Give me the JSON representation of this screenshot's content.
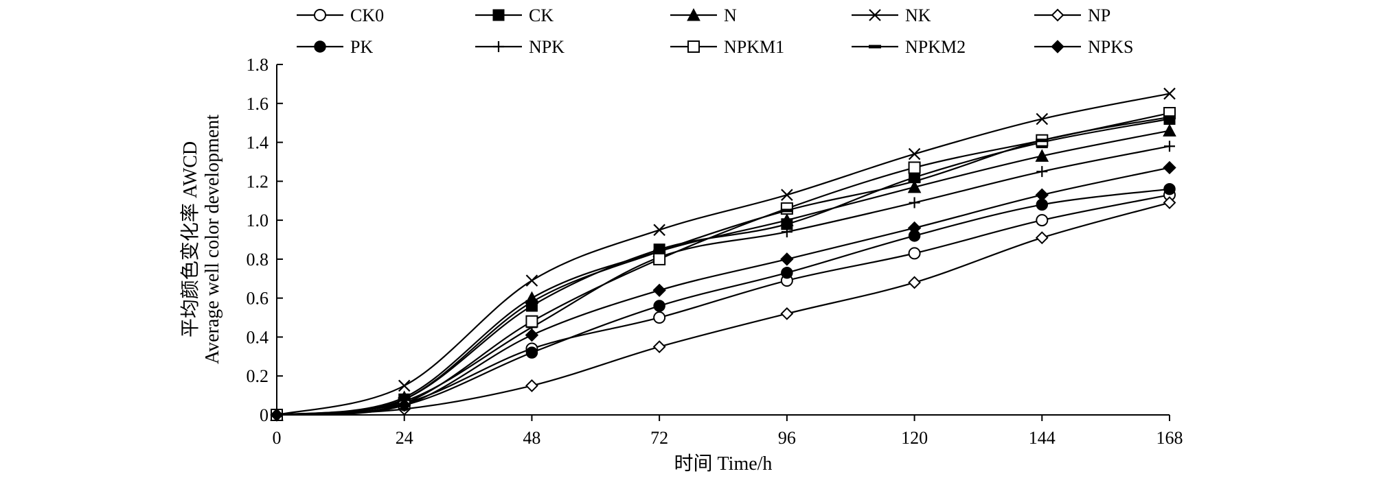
{
  "chart_data": {
    "type": "line",
    "x": [
      0,
      24,
      48,
      72,
      96,
      120,
      144,
      168
    ],
    "xlim": [
      0,
      168
    ],
    "ylim": [
      0,
      1.8
    ],
    "x_ticks": [
      "0",
      "24",
      "48",
      "72",
      "96",
      "120",
      "144",
      "168"
    ],
    "y_ticks": [
      "0",
      "0.2",
      "0.4",
      "0.6",
      "0.8",
      "1.0",
      "1.2",
      "1.4",
      "1.6",
      "1.8"
    ],
    "xlabel": "时间 Time/h",
    "ylabel_cn": "平均颜色变化率 AWCD",
    "ylabel_en": "Average well color development",
    "grid": false,
    "legend_position": "top",
    "series": [
      {
        "name": "CK0",
        "marker": "circle-open",
        "values": [
          0,
          0.06,
          0.34,
          0.5,
          0.69,
          0.83,
          1.0,
          1.13
        ]
      },
      {
        "name": "CK",
        "marker": "square-filled",
        "values": [
          0,
          0.08,
          0.56,
          0.85,
          0.98,
          1.22,
          1.4,
          1.52
        ]
      },
      {
        "name": "N",
        "marker": "triangle-filled",
        "values": [
          0,
          0.09,
          0.6,
          0.84,
          1.0,
          1.17,
          1.33,
          1.46
        ]
      },
      {
        "name": "NK",
        "marker": "x",
        "values": [
          0,
          0.15,
          0.69,
          0.95,
          1.13,
          1.34,
          1.52,
          1.65
        ]
      },
      {
        "name": "NP",
        "marker": "diamond-open",
        "values": [
          0,
          0.03,
          0.15,
          0.35,
          0.52,
          0.68,
          0.91,
          1.09
        ]
      },
      {
        "name": "PK",
        "marker": "circle-filled",
        "values": [
          0,
          0.05,
          0.32,
          0.56,
          0.73,
          0.92,
          1.08,
          1.16
        ]
      },
      {
        "name": "NPK",
        "marker": "plus",
        "values": [
          0,
          0.07,
          0.45,
          0.81,
          0.94,
          1.09,
          1.25,
          1.38
        ]
      },
      {
        "name": "NPKM1",
        "marker": "square-open",
        "values": [
          0,
          0.06,
          0.48,
          0.8,
          1.06,
          1.27,
          1.41,
          1.55
        ]
      },
      {
        "name": "NPKM2",
        "marker": "dash",
        "values": [
          0,
          0.08,
          0.58,
          0.84,
          1.05,
          1.2,
          1.41,
          1.53
        ]
      },
      {
        "name": "NPKS",
        "marker": "diamond-filled",
        "values": [
          0,
          0.05,
          0.41,
          0.64,
          0.8,
          0.96,
          1.13,
          1.27
        ]
      }
    ]
  }
}
